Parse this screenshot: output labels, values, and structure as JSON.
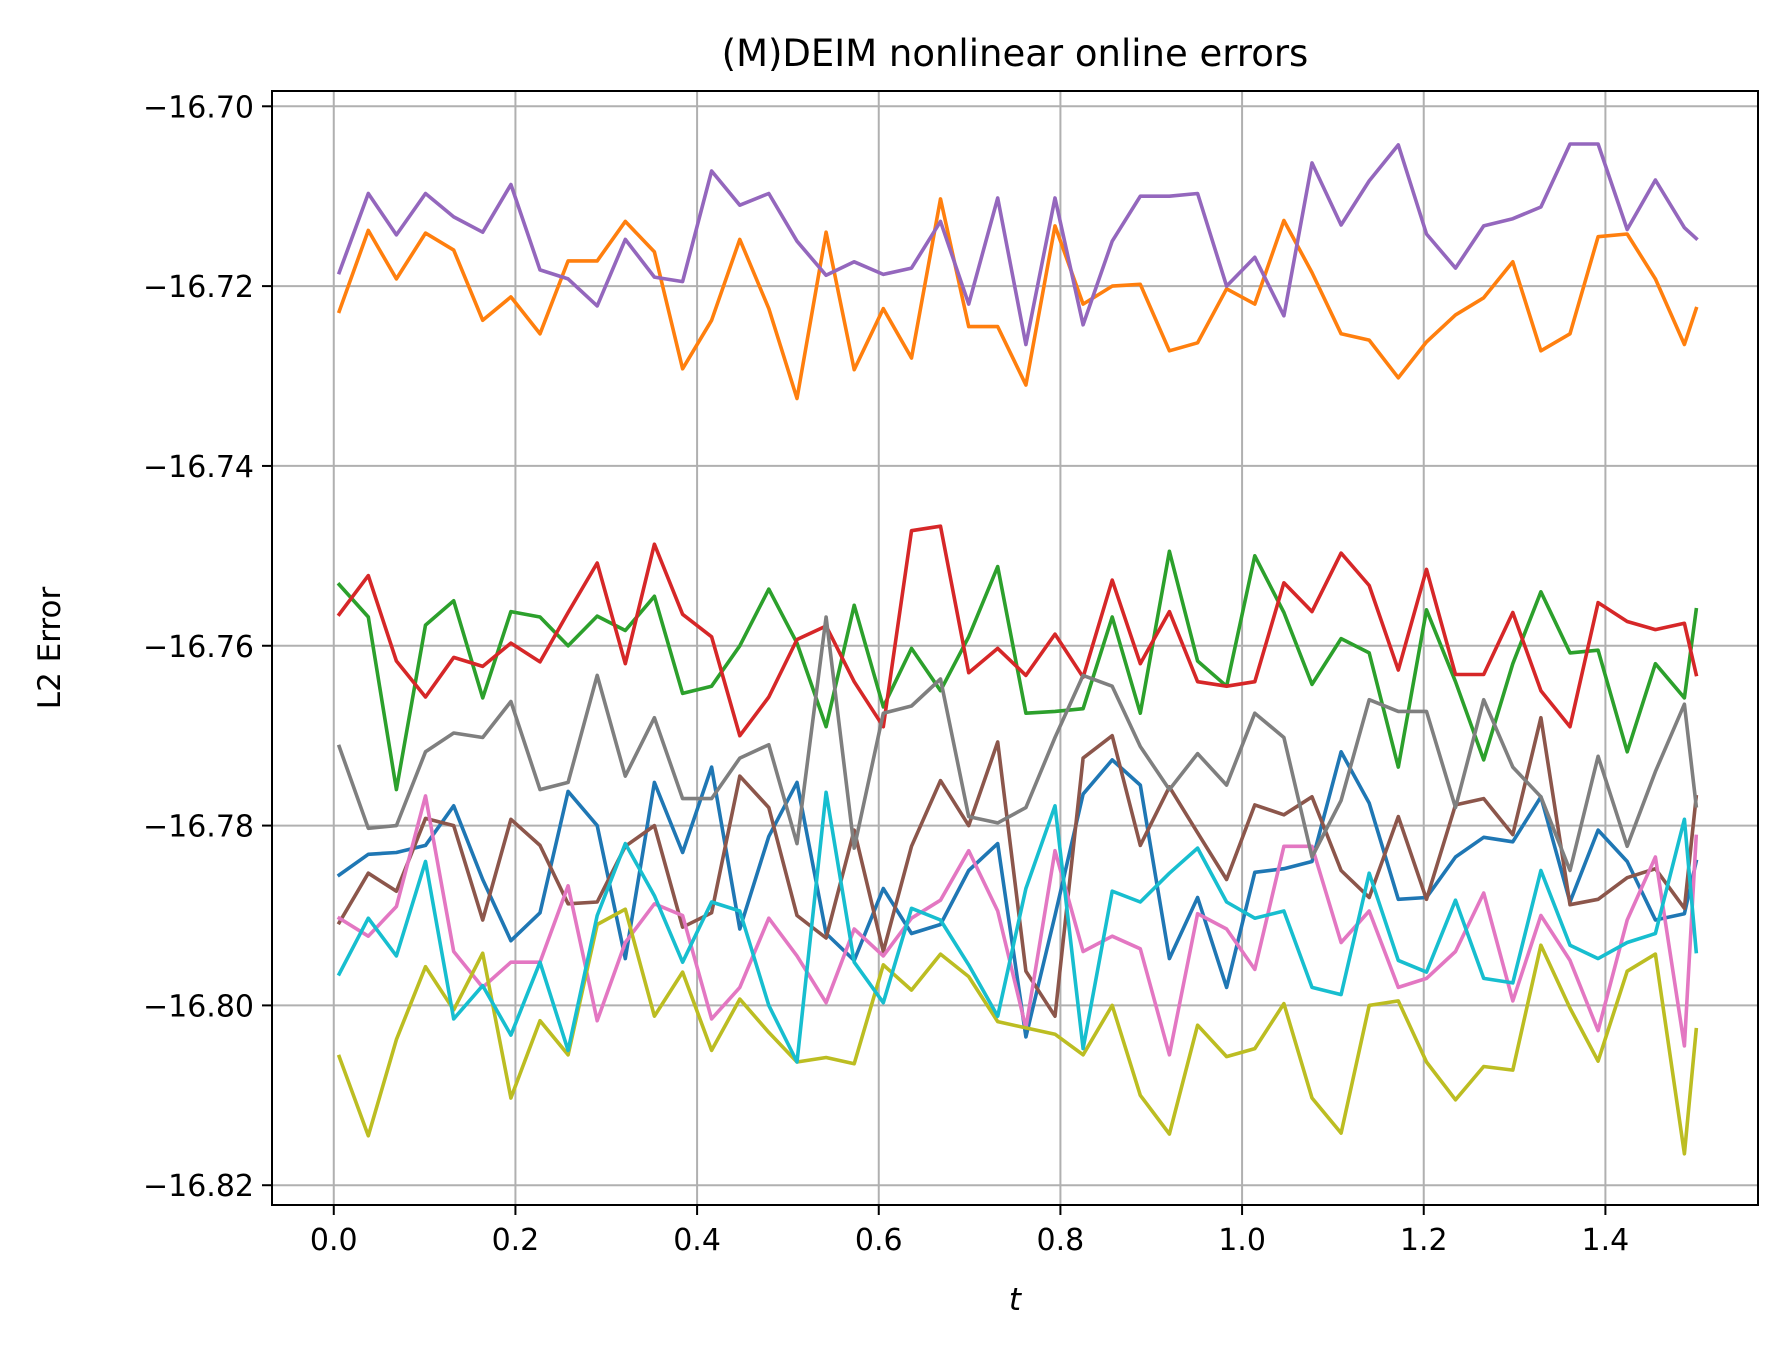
{
  "chart_data": {
    "type": "line",
    "title": "(M)DEIM nonlinear online errors",
    "xlabel": "t",
    "ylabel": "L2 Error",
    "xlim": [
      -0.068,
      1.568
    ],
    "ylim": [
      -16.8222,
      -16.6983
    ],
    "xticks": [
      0.0,
      0.2,
      0.4,
      0.6,
      0.8,
      1.0,
      1.2,
      1.4
    ],
    "xtick_labels": [
      "0.0",
      "0.2",
      "0.4",
      "0.6",
      "0.8",
      "1.0",
      "1.2",
      "1.4"
    ],
    "yticks": [
      -16.7,
      -16.72,
      -16.74,
      -16.76,
      -16.78,
      -16.8,
      -16.82
    ],
    "ytick_labels": [
      "−16.70",
      "−16.72",
      "−16.74",
      "−16.76",
      "−16.78",
      "−16.80",
      "−16.82"
    ],
    "grid": true,
    "x": [
      0.006,
      0.038,
      0.069,
      0.101,
      0.132,
      0.164,
      0.195,
      0.227,
      0.258,
      0.29,
      0.321,
      0.353,
      0.384,
      0.416,
      0.447,
      0.479,
      0.51,
      0.542,
      0.573,
      0.605,
      0.636,
      0.668,
      0.699,
      0.731,
      0.762,
      0.794,
      0.825,
      0.857,
      0.888,
      0.92,
      0.951,
      0.983,
      1.014,
      1.046,
      1.077,
      1.109,
      1.14,
      1.172,
      1.203,
      1.235,
      1.266,
      1.298,
      1.329,
      1.361,
      1.392,
      1.424,
      1.455,
      1.487,
      1.5
    ],
    "series": [
      {
        "color": "#1f77b4",
        "values": [
          -16.7855,
          -16.7832,
          -16.783,
          -16.7822,
          -16.7778,
          -16.786,
          -16.7928,
          -16.7897,
          -16.7762,
          -16.78,
          -16.7948,
          -16.7752,
          -16.783,
          -16.7735,
          -16.7915,
          -16.7812,
          -16.7752,
          -16.792,
          -16.795,
          -16.787,
          -16.792,
          -16.791,
          -16.785,
          -16.782,
          -16.8035,
          -16.79,
          -16.7765,
          -16.7727,
          -16.7755,
          -16.7948,
          -16.788,
          -16.798,
          -16.7852,
          -16.7848,
          -16.784,
          -16.7718,
          -16.7775,
          -16.7882,
          -16.788,
          -16.7835,
          -16.7813,
          -16.7818,
          -16.7768,
          -16.7885,
          -16.7805,
          -16.784,
          -16.7905,
          -16.7898,
          -16.784
        ]
      },
      {
        "color": "#ff7f0e",
        "values": [
          -16.7228,
          -16.7138,
          -16.7192,
          -16.7141,
          -16.716,
          -16.7238,
          -16.7212,
          -16.7253,
          -16.7172,
          -16.7172,
          -16.7128,
          -16.7162,
          -16.7292,
          -16.7238,
          -16.7148,
          -16.7225,
          -16.7325,
          -16.714,
          -16.7293,
          -16.7225,
          -16.728,
          -16.7103,
          -16.7245,
          -16.7245,
          -16.731,
          -16.7133,
          -16.722,
          -16.72,
          -16.7198,
          -16.7272,
          -16.7263,
          -16.7203,
          -16.722,
          -16.7127,
          -16.7185,
          -16.7253,
          -16.726,
          -16.7302,
          -16.7262,
          -16.7232,
          -16.7213,
          -16.7173,
          -16.7272,
          -16.7253,
          -16.7145,
          -16.7142,
          -16.7192,
          -16.7265,
          -16.7225
        ]
      },
      {
        "color": "#2ca02c",
        "values": [
          -16.7532,
          -16.7568,
          -16.776,
          -16.7577,
          -16.755,
          -16.7658,
          -16.7562,
          -16.7568,
          -16.76,
          -16.7567,
          -16.7583,
          -16.7545,
          -16.7653,
          -16.7645,
          -16.76,
          -16.7537,
          -16.7597,
          -16.769,
          -16.7555,
          -16.7668,
          -16.7603,
          -16.765,
          -16.759,
          -16.7512,
          -16.7675,
          -16.7673,
          -16.767,
          -16.7568,
          -16.7675,
          -16.7495,
          -16.7617,
          -16.7645,
          -16.75,
          -16.7563,
          -16.7643,
          -16.7592,
          -16.7608,
          -16.7735,
          -16.756,
          -16.764,
          -16.7727,
          -16.762,
          -16.754,
          -16.7608,
          -16.7605,
          -16.7718,
          -16.762,
          -16.7658,
          -16.756
        ]
      },
      {
        "color": "#d62728",
        "values": [
          -16.7565,
          -16.7522,
          -16.7617,
          -16.7657,
          -16.7613,
          -16.7623,
          -16.7597,
          -16.7618,
          -16.7563,
          -16.7508,
          -16.762,
          -16.7487,
          -16.7565,
          -16.759,
          -16.77,
          -16.7657,
          -16.7593,
          -16.7578,
          -16.764,
          -16.769,
          -16.7472,
          -16.7467,
          -16.763,
          -16.7603,
          -16.7633,
          -16.7587,
          -16.7635,
          -16.7527,
          -16.762,
          -16.7562,
          -16.764,
          -16.7645,
          -16.764,
          -16.753,
          -16.7562,
          -16.7497,
          -16.7533,
          -16.7627,
          -16.7515,
          -16.7632,
          -16.7632,
          -16.7563,
          -16.765,
          -16.769,
          -16.7552,
          -16.7573,
          -16.7582,
          -16.7575,
          -16.7632
        ]
      },
      {
        "color": "#9467bd",
        "values": [
          -16.7185,
          -16.7097,
          -16.7143,
          -16.7097,
          -16.7123,
          -16.714,
          -16.7087,
          -16.7182,
          -16.7192,
          -16.7222,
          -16.7148,
          -16.719,
          -16.7195,
          -16.7072,
          -16.711,
          -16.7097,
          -16.715,
          -16.7188,
          -16.7173,
          -16.7187,
          -16.718,
          -16.7128,
          -16.722,
          -16.7102,
          -16.7265,
          -16.7102,
          -16.7243,
          -16.715,
          -16.71,
          -16.71,
          -16.7097,
          -16.72,
          -16.7168,
          -16.7233,
          -16.7063,
          -16.7132,
          -16.7083,
          -16.7043,
          -16.7142,
          -16.718,
          -16.7133,
          -16.7125,
          -16.7112,
          -16.7042,
          -16.7042,
          -16.7137,
          -16.7082,
          -16.7135,
          -16.7147
        ]
      },
      {
        "color": "#8c564b",
        "values": [
          -16.7908,
          -16.7853,
          -16.7873,
          -16.7792,
          -16.78,
          -16.7905,
          -16.7793,
          -16.7822,
          -16.7887,
          -16.7885,
          -16.7823,
          -16.78,
          -16.7913,
          -16.7897,
          -16.7745,
          -16.778,
          -16.79,
          -16.7925,
          -16.7805,
          -16.794,
          -16.7823,
          -16.775,
          -16.78,
          -16.7707,
          -16.7962,
          -16.8012,
          -16.7725,
          -16.77,
          -16.7822,
          -16.7757,
          -16.7808,
          -16.786,
          -16.7777,
          -16.7788,
          -16.7768,
          -16.785,
          -16.788,
          -16.779,
          -16.7882,
          -16.7777,
          -16.777,
          -16.781,
          -16.768,
          -16.7888,
          -16.7882,
          -16.7858,
          -16.7848,
          -16.7892,
          -16.7768
        ]
      },
      {
        "color": "#e377c2",
        "values": [
          -16.7903,
          -16.7923,
          -16.789,
          -16.7767,
          -16.794,
          -16.798,
          -16.7952,
          -16.7952,
          -16.7867,
          -16.8017,
          -16.793,
          -16.7887,
          -16.79,
          -16.8015,
          -16.798,
          -16.7903,
          -16.7945,
          -16.7997,
          -16.7915,
          -16.7945,
          -16.7903,
          -16.7883,
          -16.7828,
          -16.7895,
          -16.8025,
          -16.7828,
          -16.794,
          -16.7923,
          -16.7937,
          -16.8055,
          -16.7898,
          -16.7915,
          -16.796,
          -16.7823,
          -16.7823,
          -16.793,
          -16.7895,
          -16.798,
          -16.797,
          -16.794,
          -16.7875,
          -16.7995,
          -16.79,
          -16.795,
          -16.8028,
          -16.7905,
          -16.7835,
          -16.8045,
          -16.7812
        ]
      },
      {
        "color": "#7f7f7f",
        "values": [
          -16.7712,
          -16.7803,
          -16.78,
          -16.7718,
          -16.7697,
          -16.7702,
          -16.7662,
          -16.776,
          -16.7752,
          -16.7633,
          -16.7745,
          -16.768,
          -16.777,
          -16.777,
          -16.7725,
          -16.771,
          -16.782,
          -16.7568,
          -16.7825,
          -16.7675,
          -16.7667,
          -16.7637,
          -16.779,
          -16.7797,
          -16.778,
          -16.7702,
          -16.7633,
          -16.7645,
          -16.7712,
          -16.776,
          -16.772,
          -16.7755,
          -16.7675,
          -16.7702,
          -16.7835,
          -16.7772,
          -16.766,
          -16.7673,
          -16.7673,
          -16.778,
          -16.766,
          -16.7735,
          -16.7768,
          -16.785,
          -16.7723,
          -16.7823,
          -16.774,
          -16.7665,
          -16.7778
        ]
      },
      {
        "color": "#bcbd22",
        "values": [
          -16.8057,
          -16.8145,
          -16.8038,
          -16.7957,
          -16.8005,
          -16.7942,
          -16.8103,
          -16.8017,
          -16.8055,
          -16.791,
          -16.7893,
          -16.8012,
          -16.7963,
          -16.805,
          -16.7993,
          -16.803,
          -16.8063,
          -16.8058,
          -16.8065,
          -16.7955,
          -16.7983,
          -16.7943,
          -16.7968,
          -16.8018,
          -16.8025,
          -16.8032,
          -16.8055,
          -16.8,
          -16.81,
          -16.8143,
          -16.8022,
          -16.8057,
          -16.8048,
          -16.7998,
          -16.8103,
          -16.8142,
          -16.8,
          -16.7995,
          -16.8063,
          -16.8105,
          -16.8068,
          -16.8072,
          -16.7933,
          -16.8003,
          -16.8062,
          -16.7962,
          -16.7943,
          -16.8165,
          -16.8027
        ]
      },
      {
        "color": "#17becf",
        "values": [
          -16.7965,
          -16.7903,
          -16.7945,
          -16.784,
          -16.8015,
          -16.7978,
          -16.8033,
          -16.7952,
          -16.805,
          -16.79,
          -16.782,
          -16.7878,
          -16.7952,
          -16.7885,
          -16.7895,
          -16.8,
          -16.8063,
          -16.7763,
          -16.7952,
          -16.7997,
          -16.7892,
          -16.7905,
          -16.7955,
          -16.8012,
          -16.787,
          -16.7778,
          -16.8048,
          -16.7873,
          -16.7885,
          -16.7853,
          -16.7825,
          -16.7885,
          -16.7903,
          -16.7895,
          -16.798,
          -16.7988,
          -16.7853,
          -16.795,
          -16.7963,
          -16.7883,
          -16.797,
          -16.7975,
          -16.785,
          -16.7933,
          -16.7948,
          -16.793,
          -16.792,
          -16.7793,
          -16.794
        ]
      }
    ]
  }
}
